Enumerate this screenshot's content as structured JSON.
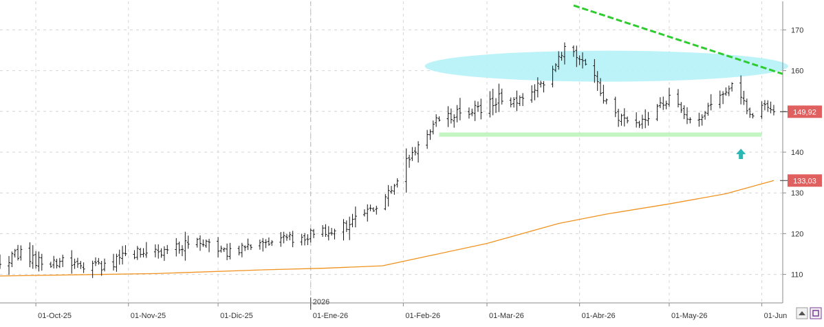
{
  "chart_data": {
    "type": "ohlc",
    "title": "",
    "xlabel": "",
    "ylabel": "",
    "ylim": [
      103,
      177
    ],
    "y_ticks": [
      110,
      120,
      130,
      140,
      150,
      160,
      170
    ],
    "x_ticks": [
      "01-Oct-25",
      "01-Nov-25",
      "01-Dic-25",
      "01-Ene-26",
      "01-Feb-26",
      "01-Mar-26",
      "01-Abr-26",
      "01-May-26",
      "01-Jun"
    ],
    "year_marker": "2026",
    "grid": true,
    "x_range": [
      "2025-09-19",
      "2026-06-08"
    ],
    "price_series": {
      "name": "",
      "points": [
        [
          "2025-09-19",
          113.5
        ],
        [
          "2025-09-26",
          115.0
        ],
        [
          "2025-10-03",
          112.5
        ],
        [
          "2025-10-10",
          113.5
        ],
        [
          "2025-10-17",
          112.5
        ],
        [
          "2025-10-24",
          112.0
        ],
        [
          "2025-10-31",
          114.5
        ],
        [
          "2025-11-07",
          115.8
        ],
        [
          "2025-11-14",
          115.0
        ],
        [
          "2025-11-21",
          118.2
        ],
        [
          "2025-11-28",
          117.0
        ],
        [
          "2025-12-05",
          115.5
        ],
        [
          "2025-12-12",
          116.8
        ],
        [
          "2025-12-19",
          117.5
        ],
        [
          "2025-12-26",
          119.0
        ],
        [
          "2026-01-02",
          120.0
        ],
        [
          "2026-01-09",
          121.0
        ],
        [
          "2026-01-16",
          123.2
        ],
        [
          "2026-01-23",
          126.5
        ],
        [
          "2026-01-30",
          134.0
        ],
        [
          "2026-02-06",
          141.5
        ],
        [
          "2026-02-13",
          148.5
        ],
        [
          "2026-02-20",
          149.5
        ],
        [
          "2026-02-27",
          151.0
        ],
        [
          "2026-03-06",
          153.5
        ],
        [
          "2026-03-13",
          152.0
        ],
        [
          "2026-03-20",
          157.5
        ],
        [
          "2026-03-27",
          166.0
        ],
        [
          "2026-04-03",
          162.5
        ],
        [
          "2026-04-10",
          152.0
        ],
        [
          "2026-04-17",
          146.5
        ],
        [
          "2026-04-24",
          149.0
        ],
        [
          "2026-05-01",
          153.5
        ],
        [
          "2026-05-08",
          147.0
        ],
        [
          "2026-05-15",
          152.0
        ],
        [
          "2026-05-22",
          157.0
        ],
        [
          "2026-05-29",
          149.0
        ],
        [
          "2026-06-03",
          151.5
        ],
        [
          "2026-06-05",
          149.92
        ]
      ]
    },
    "moving_average": {
      "name": "",
      "color": "#f0921e",
      "points": [
        [
          "2025-09-19",
          109.6
        ],
        [
          "2025-11-10",
          110.2
        ],
        [
          "2025-12-15",
          111.1
        ],
        [
          "2026-01-05",
          111.5
        ],
        [
          "2026-01-25",
          112.1
        ],
        [
          "2026-02-10",
          114.6
        ],
        [
          "2026-03-01",
          117.6
        ],
        [
          "2026-03-25",
          122.5
        ],
        [
          "2026-04-10",
          124.8
        ],
        [
          "2026-05-01",
          127.3
        ],
        [
          "2026-05-20",
          129.8
        ],
        [
          "2026-06-05",
          133.03
        ]
      ]
    },
    "last_price_label": "149,92",
    "ma_price_label": "133,03",
    "annotations": {
      "trendline": {
        "color": "#2ecc2e",
        "from": [
          "2026-03-30",
          176.0
        ],
        "to": [
          "2026-06-08",
          159.2
        ]
      },
      "support_band": {
        "color": "#c2f5c2",
        "from": "2026-02-13",
        "to": "2026-06-01",
        "level": 144.3
      },
      "ellipse": {
        "color": "#b4f2f8",
        "center": [
          "2026-04-10",
          161.1
        ],
        "span_days": 19,
        "span_value": 3.8
      },
      "arrow": {
        "color": "#2ab8b4",
        "date": "2026-05-25",
        "level": 139.5
      }
    }
  },
  "colors": {
    "bars": "#111111",
    "label_bg": "#e06060",
    "label_text": "#ffffff",
    "grid": "#d4d4d4",
    "axis": "#8a8a8a"
  },
  "icons": {
    "corner_left": "save-icon",
    "corner_right": "zoom-icon"
  }
}
